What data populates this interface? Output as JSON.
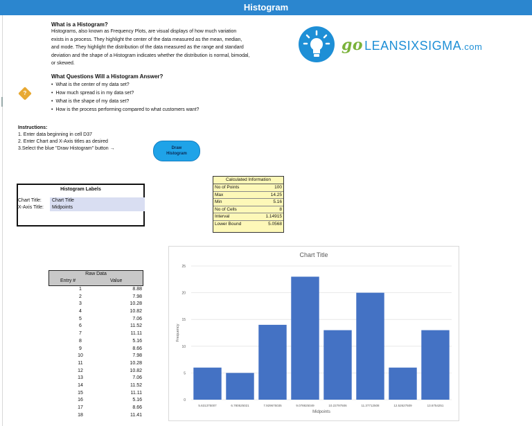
{
  "header": {
    "title": "Histogram"
  },
  "intro": {
    "heading": "What is a Histogram?",
    "lines": [
      "Histograms, also known as Frequency Plots, are visual displays of how much variation",
      "exists in a process. They highlight the center of  the data measured as the mean, median,",
      "and mode. They highlight the distribution of the data measured as the range and standard",
      "deviation and the shape of a Histogram indicates whether the distribution is normal, bimodal,",
      "or skewed."
    ]
  },
  "questions": {
    "heading": "What Questions Will a Histogram Answer?",
    "items": [
      "What is the center of my data set?",
      "How much spread is in my data set?",
      "What is the shape of my data set?",
      "How is the process performing compared to what customers want?"
    ],
    "icon": "question-diamond-icon"
  },
  "logo": {
    "go": "go",
    "name": "LEANSIXSIGMA",
    "tld": ".com",
    "icon": "lightbulb-icon",
    "brand_color": "#1e8fd6",
    "go_color": "#7ab23a"
  },
  "instructions": {
    "heading": "Instructions:",
    "steps": [
      "1. Enter data beginning in cell D37",
      "2. Enter Chart and X-Axis titles as desired",
      "3.Select the blue \"Draw Histogram\" button →"
    ]
  },
  "draw_button": {
    "line1": "Draw",
    "line2": "Histogram"
  },
  "labels_box": {
    "title": "Histogram Labels",
    "chart_title_label": "Chart Title:",
    "chart_title_value": "Chart Title",
    "xaxis_title_label": "X-Axis Title:",
    "xaxis_title_value": "Midpoints"
  },
  "calculated": {
    "title": "Calculated Information",
    "rows": [
      {
        "k": "No of Points",
        "v": "100"
      },
      {
        "k": "Max",
        "v": "14.25"
      },
      {
        "k": "Min",
        "v": "5.16"
      },
      {
        "k": "No of Cells",
        "v": "8"
      },
      {
        "k": "Interval",
        "v": "1.14915"
      },
      {
        "k": "Lower Bound",
        "v": "5.0568"
      }
    ]
  },
  "raw_data": {
    "title": "Raw Data",
    "col_entry": "Entry #",
    "col_value": "Value",
    "rows": [
      {
        "e": "1",
        "v": "8.88"
      },
      {
        "e": "2",
        "v": "7.98"
      },
      {
        "e": "3",
        "v": "10.28"
      },
      {
        "e": "4",
        "v": "10.82"
      },
      {
        "e": "5",
        "v": "7.06"
      },
      {
        "e": "6",
        "v": "11.52"
      },
      {
        "e": "7",
        "v": "11.11"
      },
      {
        "e": "8",
        "v": "5.16"
      },
      {
        "e": "9",
        "v": "8.66"
      },
      {
        "e": "10",
        "v": "7.98"
      },
      {
        "e": "11",
        "v": "10.28"
      },
      {
        "e": "12",
        "v": "10.82"
      },
      {
        "e": "13",
        "v": "7.06"
      },
      {
        "e": "14",
        "v": "11.52"
      },
      {
        "e": "15",
        "v": "11.11"
      },
      {
        "e": "16",
        "v": "5.16"
      },
      {
        "e": "17",
        "v": "8.66"
      },
      {
        "e": "18",
        "v": "11.41"
      }
    ]
  },
  "chart_data": {
    "type": "bar",
    "title": "Chart Title",
    "xlabel": "Midpoints",
    "ylabel": "Frequency",
    "categories": [
      "5.631375007",
      "6.780525021",
      "7.929675035",
      "9.078825049",
      "10.22797506",
      "11.37712508",
      "12.52627509",
      "13.6754251"
    ],
    "values": [
      6,
      5,
      14,
      23,
      13,
      20,
      6,
      13
    ],
    "ylim": [
      0,
      25
    ],
    "yticks": [
      0,
      5,
      10,
      15,
      20,
      25
    ],
    "grid": true,
    "legend": "none",
    "bar_color": "#4472c4"
  }
}
